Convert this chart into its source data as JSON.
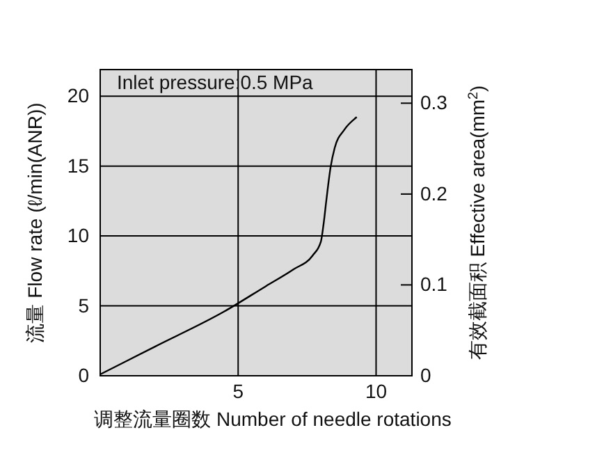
{
  "chart_data": {
    "type": "line",
    "xlabel": "调整流量圈数 Number of needle rotations",
    "ylabel": "流量 Flow rate (ℓ/min(ANR))",
    "y2label": "有效截面积 Effective area(mm$^{2}$)",
    "annotations": [
      "Inlet pressure:0.5 MPa"
    ],
    "series": [
      {
        "color": "#000000",
        "x": [
          0,
          2,
          4.5,
          6,
          7,
          7.7,
          8.0,
          8.1,
          8.2,
          8.35,
          8.5,
          8.85,
          9.3
        ],
        "values": [
          0.1,
          2.1,
          4.6,
          6.4,
          7.6,
          8.6,
          9.6,
          10.9,
          12.6,
          14.9,
          16.3,
          17.6,
          18.5
        ]
      }
    ],
    "xlim": [
      0,
      11.3
    ],
    "xticks": [
      5,
      10
    ],
    "ylim": [
      0,
      21.9
    ],
    "yticks": [
      0,
      5,
      10,
      15,
      20
    ],
    "y2lim": [
      0,
      0.337
    ],
    "y2ticks": [
      0,
      0.1,
      0.2,
      0.3
    ],
    "grid": true,
    "marker": "none",
    "line_style": "solid"
  }
}
